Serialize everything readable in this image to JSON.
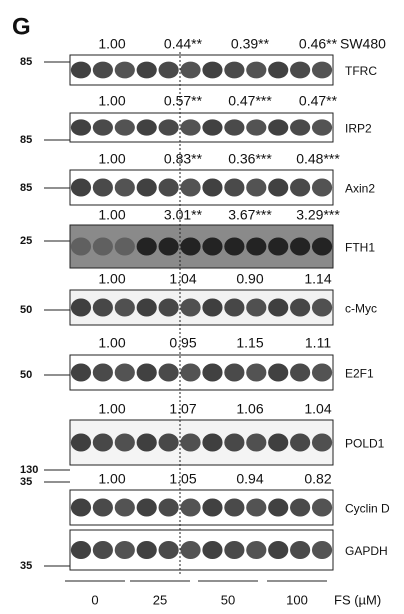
{
  "panel_label": "G",
  "cell_line": "SW480",
  "blots": [
    {
      "marker": "85",
      "name": "TFRC",
      "quant": [
        "1.00",
        "0.44**",
        "0.39**",
        "0.46**"
      ]
    },
    {
      "marker": "85",
      "name": "IRP2",
      "quant": [
        "1.00",
        "0.57**",
        "0.47***",
        "0.47**"
      ]
    },
    {
      "marker": "85",
      "name": "Axin2",
      "quant": [
        "1.00",
        "0.83**",
        "0.36***",
        "0.48***"
      ]
    },
    {
      "marker": "25",
      "name": "FTH1",
      "quant": [
        "1.00",
        "3.01**",
        "3.67***",
        "3.29***"
      ]
    },
    {
      "marker": "50",
      "name": "c-Myc",
      "quant": [
        "1.00",
        "1.04",
        "0.90",
        "1.14"
      ]
    },
    {
      "marker": "50",
      "name": "E2F1",
      "quant": [
        "1.00",
        "0.95",
        "1.15",
        "1.11"
      ]
    },
    {
      "marker": "130",
      "name": "POLD1",
      "quant": [
        "1.00",
        "1.07",
        "1.06",
        "1.04"
      ]
    },
    {
      "marker": "35",
      "name": "Cyclin D",
      "quant": [
        "1.00",
        "1.05",
        "0.94",
        "0.82"
      ]
    },
    {
      "marker": "35",
      "name": "GAPDH"
    }
  ],
  "groups": [
    "0",
    "25",
    "50",
    "100"
  ],
  "x_label": "FS (µM)"
}
